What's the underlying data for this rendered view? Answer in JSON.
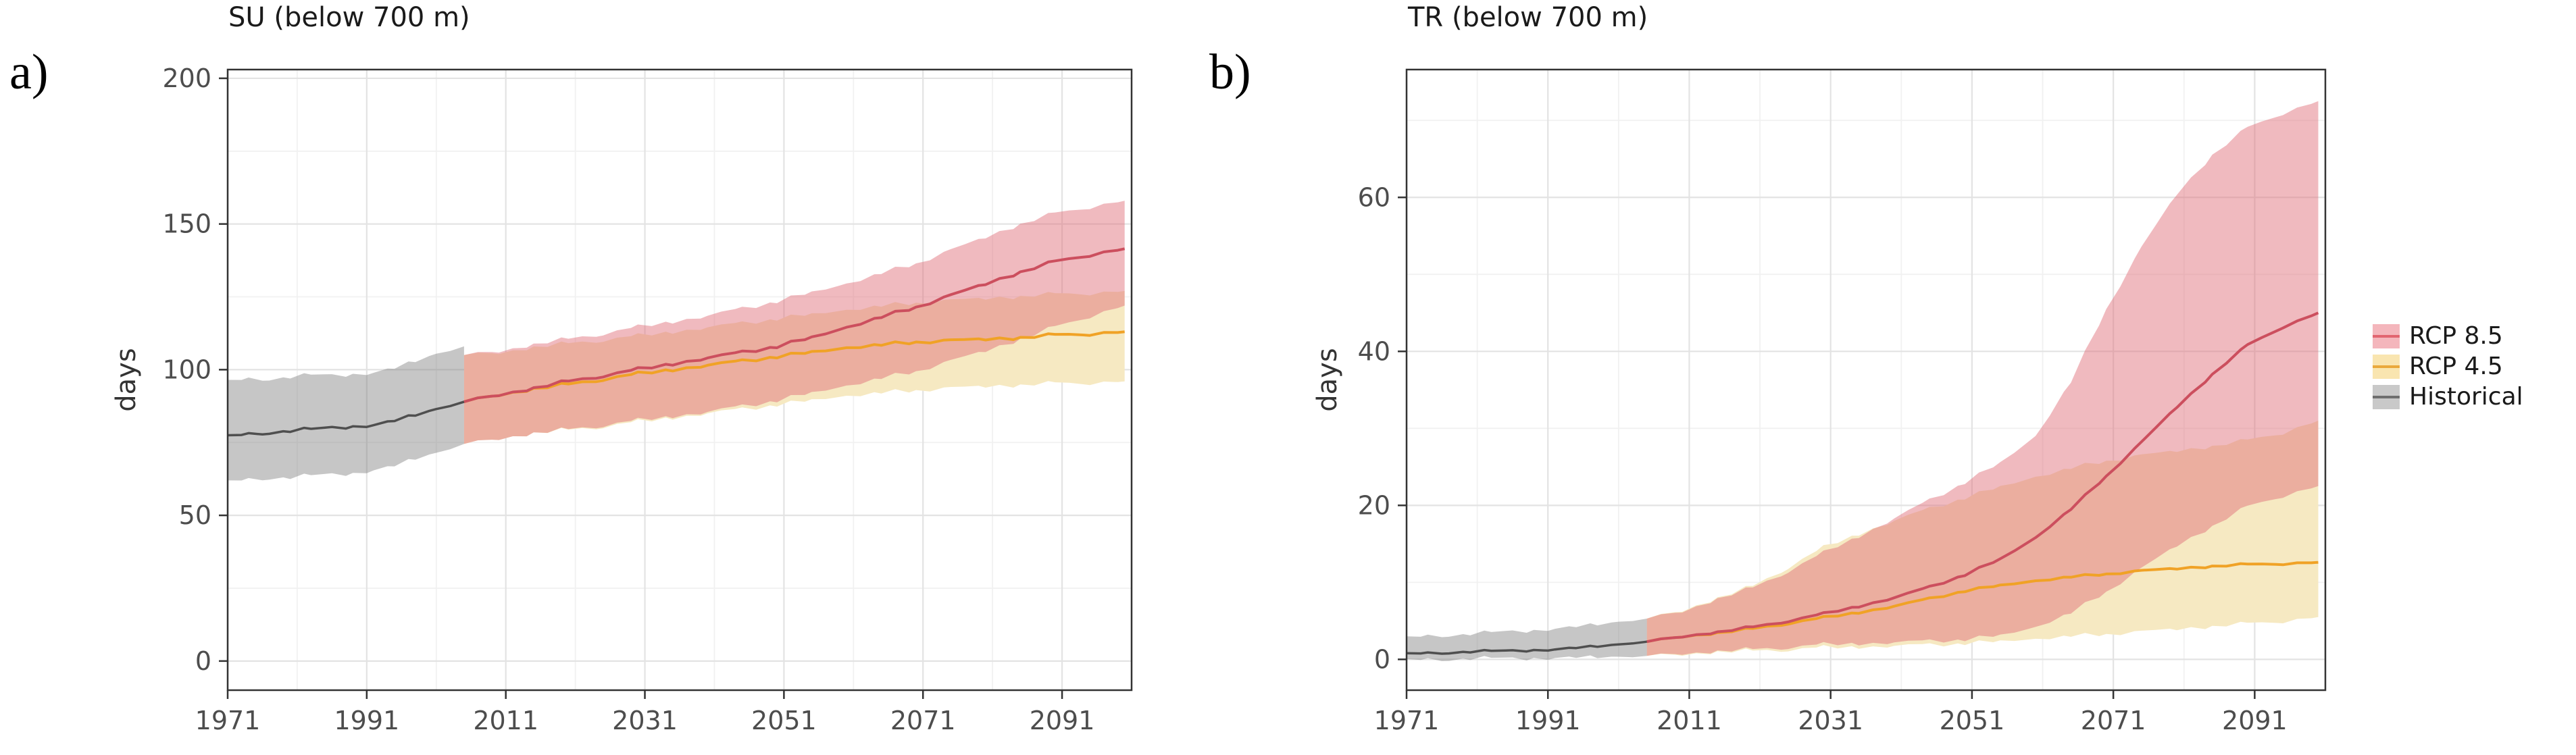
{
  "figure": {
    "panel_a_label": "a)",
    "panel_b_label": "b)"
  },
  "legend": {
    "position": "right-center",
    "items": [
      {
        "label": "RCP 8.5",
        "fill": "#f4b6bc",
        "line": "#e26570"
      },
      {
        "label": "RCP 4.5",
        "fill": "#f9e5b0",
        "line": "#eaa93c"
      },
      {
        "label": "Historical",
        "fill": "#c9c9c9",
        "line": "#6e6e6e"
      }
    ]
  },
  "chart_data": {
    "type": "line",
    "description": "Ensemble median lines with shaded min-max ribbons per scenario",
    "colors": {
      "rcp85_band": "rgba(224,110,122,0.48)",
      "rcp45_band": "#f6e9c2",
      "hist_band": "rgba(120,120,120,0.42)",
      "rcp85_line": "#cc4f5e",
      "rcp45_line": "#f0a226",
      "hist_line": "#4f4f4f",
      "grid_major": "#e3e3e3",
      "grid_minor": "#f1f1f1",
      "axis": "#333333",
      "tick_text": "#4d4d4d"
    },
    "charts": [
      {
        "title": "SU (below 700 m)",
        "ylabel": "days",
        "xticks": [
          1971,
          1991,
          2011,
          2031,
          2051,
          2071,
          2091
        ],
        "yticks": [
          0,
          50,
          100,
          150,
          200
        ],
        "xlim": [
          1971,
          2101
        ],
        "ylim": [
          -10,
          203
        ],
        "grid": "major+minor",
        "series": {
          "historical": {
            "years": [
              1971,
              1974,
              1977,
              1980,
              1983,
              1986,
              1989,
              1992,
              1995,
              1998,
              2001,
              2005
            ],
            "median": [
              77.5,
              78,
              78.5,
              79,
              79.5,
              80,
              80.5,
              81,
              82.5,
              84.5,
              86.5,
              89
            ],
            "upper": [
              96.5,
              97,
              97,
              97.5,
              98,
              98,
              98.5,
              99,
              100.5,
              103,
              105.5,
              108
            ],
            "lower": [
              62,
              62.5,
              63,
              63,
              63.5,
              64,
              64.5,
              65.5,
              67,
              69.5,
              71.5,
              74.5
            ]
          },
          "rcp85": {
            "years": [
              2005,
              2010,
              2015,
              2020,
              2025,
              2030,
              2035,
              2040,
              2045,
              2050,
              2055,
              2060,
              2065,
              2070,
              2075,
              2080,
              2085,
              2090,
              2095,
              2100
            ],
            "median": [
              89,
              91.5,
              93.5,
              96,
              98,
              100,
              102,
              104,
              106,
              108,
              111,
              114.5,
              118,
              121.5,
              125.5,
              129.5,
              133.5,
              137,
              139.5,
              141.5
            ],
            "upper": [
              105,
              106.5,
              108.5,
              110.5,
              112.5,
              114.5,
              116.5,
              118.5,
              121,
              123.5,
              126.5,
              129.5,
              133,
              136.5,
              141,
              145.5,
              150,
              153.5,
              156,
              158
            ],
            "lower": [
              74.5,
              76.5,
              78,
              79.5,
              81,
              82.5,
              84,
              85.5,
              87.5,
              89.5,
              92,
              94.5,
              97,
              99.5,
              103,
              106.5,
              110.5,
              114.5,
              118.5,
              122
            ]
          },
          "rcp45": {
            "years": [
              2005,
              2010,
              2015,
              2020,
              2025,
              2030,
              2035,
              2040,
              2045,
              2050,
              2055,
              2060,
              2065,
              2070,
              2075,
              2080,
              2085,
              2090,
              2095,
              2100
            ],
            "median": [
              89,
              91.5,
              93.3,
              95,
              96.8,
              98.5,
              100,
              101.5,
              103,
              104.5,
              106,
              107.5,
              108.5,
              109.5,
              110,
              110.5,
              111,
              111.8,
              112.4,
              113
            ],
            "upper": [
              105,
              106,
              107.5,
              109,
              110.3,
              111.5,
              113,
              114.5,
              116,
              117.5,
              119,
              120.5,
              121.8,
              123,
              123.8,
              124.5,
              125.2,
              125.8,
              126.4,
              127
            ],
            "lower": [
              74.5,
              76.5,
              78,
              79.3,
              80.6,
              82,
              83.5,
              85,
              86.5,
              88,
              89.5,
              91,
              92,
              93,
              93.7,
              94.3,
              94.8,
              95.2,
              95.6,
              96
            ]
          }
        }
      },
      {
        "title": "TR (below 700 m)",
        "ylabel": "days",
        "xticks": [
          1971,
          1991,
          2011,
          2031,
          2051,
          2071,
          2091
        ],
        "yticks": [
          0,
          20,
          40,
          60
        ],
        "xlim": [
          1971,
          2101
        ],
        "ylim": [
          -4,
          76.6
        ],
        "grid": "major+minor",
        "series": {
          "historical": {
            "years": [
              1971,
              1974,
              1977,
              1980,
              1983,
              1986,
              1989,
              1992,
              1995,
              1998,
              2001,
              2005
            ],
            "median": [
              0.8,
              0.85,
              0.9,
              1.0,
              1.05,
              1.1,
              1.2,
              1.3,
              1.5,
              1.7,
              1.95,
              2.3
            ],
            "upper": [
              3.0,
              3.1,
              3.2,
              3.3,
              3.45,
              3.6,
              3.8,
              4.0,
              4.25,
              4.55,
              4.9,
              5.3
            ],
            "lower": [
              0.05,
              0.05,
              0.05,
              0.1,
              0.1,
              0.1,
              0.15,
              0.2,
              0.25,
              0.3,
              0.35,
              0.45
            ]
          },
          "rcp85": {
            "years": [
              2005,
              2010,
              2015,
              2020,
              2025,
              2030,
              2035,
              2040,
              2045,
              2050,
              2055,
              2060,
              2065,
              2070,
              2075,
              2080,
              2085,
              2090,
              2095,
              2100
            ],
            "median": [
              2.3,
              3.0,
              3.5,
              4.2,
              5.0,
              5.9,
              6.9,
              8.0,
              9.4,
              11,
              13,
              15.8,
              19.5,
              23.8,
              28.2,
              32.8,
              37,
              40.8,
              43.2,
              45
            ],
            "upper": [
              5.3,
              6.3,
              7.8,
              9.3,
              11.5,
              13.8,
              16,
              18.3,
              20.7,
              23,
              25.5,
              29,
              36,
              45.5,
              53.5,
              60.5,
              65.5,
              69,
              71,
              72.5
            ],
            "lower": [
              0.45,
              0.8,
              1.0,
              1.3,
              1.6,
              1.9,
              2.05,
              2.2,
              2.4,
              2.6,
              3.1,
              4.2,
              6,
              8.8,
              11.8,
              14.8,
              17.3,
              19.8,
              21.3,
              22.5
            ]
          },
          "rcp45": {
            "years": [
              2005,
              2010,
              2015,
              2020,
              2025,
              2030,
              2035,
              2040,
              2045,
              2050,
              2055,
              2060,
              2065,
              2070,
              2075,
              2080,
              2085,
              2090,
              2095,
              2100
            ],
            "median": [
              2.3,
              3.0,
              3.4,
              4.0,
              4.7,
              5.4,
              6.1,
              6.9,
              7.9,
              8.9,
              9.6,
              10.2,
              10.7,
              11.1,
              11.5,
              11.8,
              12.1,
              12.3,
              12.45,
              12.6
            ],
            "upper": [
              5.3,
              6.4,
              7.9,
              9.5,
              12,
              14.5,
              16.3,
              18,
              19.6,
              21,
              22.4,
              23.7,
              24.8,
              25.8,
              26.5,
              27.1,
              27.7,
              28.4,
              29.5,
              31
            ],
            "lower": [
              0.45,
              0.7,
              0.9,
              1.1,
              1.3,
              1.5,
              1.6,
              1.75,
              1.9,
              2.1,
              2.35,
              2.65,
              3.0,
              3.3,
              3.6,
              3.95,
              4.3,
              4.6,
              5.0,
              5.5
            ]
          }
        }
      }
    ]
  }
}
